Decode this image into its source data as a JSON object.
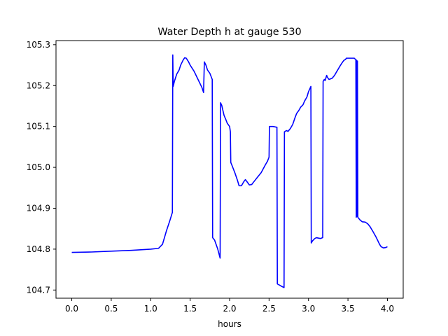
{
  "chart_data": {
    "type": "line",
    "title": "Water Depth h at gauge 530",
    "xlabel": "hours",
    "ylabel": "",
    "xlim": [
      -0.2,
      4.2
    ],
    "ylim": [
      104.68,
      105.31
    ],
    "xticks": [
      0.0,
      0.5,
      1.0,
      1.5,
      2.0,
      2.5,
      3.0,
      3.5,
      4.0
    ],
    "xtick_labels": [
      "0.0",
      "0.5",
      "1.0",
      "1.5",
      "2.0",
      "2.5",
      "3.0",
      "3.5",
      "4.0"
    ],
    "yticks": [
      104.7,
      104.8,
      104.9,
      105.0,
      105.1,
      105.2,
      105.3
    ],
    "ytick_labels": [
      "104.7",
      "104.8",
      "104.9",
      "105.0",
      "105.1",
      "105.2",
      "105.3"
    ],
    "grid": false,
    "legend": "none",
    "series": [
      {
        "color": "#0000ff",
        "points": [
          [
            0.0,
            104.792
          ],
          [
            0.25,
            104.793
          ],
          [
            0.5,
            104.795
          ],
          [
            0.75,
            104.797
          ],
          [
            1.0,
            104.8
          ],
          [
            1.1,
            104.802
          ],
          [
            1.15,
            104.812
          ],
          [
            1.2,
            104.845
          ],
          [
            1.24,
            104.868
          ],
          [
            1.275,
            104.89
          ],
          [
            1.28,
            105.275
          ],
          [
            1.285,
            105.198
          ],
          [
            1.3,
            105.21
          ],
          [
            1.33,
            105.228
          ],
          [
            1.36,
            105.238
          ],
          [
            1.38,
            105.25
          ],
          [
            1.41,
            105.262
          ],
          [
            1.43,
            105.268
          ],
          [
            1.45,
            105.267
          ],
          [
            1.48,
            105.258
          ],
          [
            1.5,
            105.25
          ],
          [
            1.55,
            105.235
          ],
          [
            1.6,
            105.215
          ],
          [
            1.65,
            105.195
          ],
          [
            1.67,
            105.183
          ],
          [
            1.68,
            105.258
          ],
          [
            1.7,
            105.25
          ],
          [
            1.72,
            105.238
          ],
          [
            1.75,
            105.23
          ],
          [
            1.78,
            105.215
          ],
          [
            1.785,
            104.828
          ],
          [
            1.81,
            104.822
          ],
          [
            1.85,
            104.8
          ],
          [
            1.88,
            104.778
          ],
          [
            1.885,
            105.158
          ],
          [
            1.9,
            105.152
          ],
          [
            1.92,
            105.135
          ],
          [
            1.93,
            105.127
          ],
          [
            1.95,
            105.118
          ],
          [
            1.97,
            105.108
          ],
          [
            2.0,
            105.1
          ],
          [
            2.01,
            105.087
          ],
          [
            2.015,
            105.012
          ],
          [
            2.03,
            105.005
          ],
          [
            2.05,
            104.995
          ],
          [
            2.07,
            104.985
          ],
          [
            2.1,
            104.968
          ],
          [
            2.12,
            104.955
          ],
          [
            2.15,
            104.955
          ],
          [
            2.18,
            104.965
          ],
          [
            2.2,
            104.97
          ],
          [
            2.22,
            104.965
          ],
          [
            2.25,
            104.957
          ],
          [
            2.28,
            104.958
          ],
          [
            2.3,
            104.963
          ],
          [
            2.35,
            104.975
          ],
          [
            2.4,
            104.987
          ],
          [
            2.45,
            105.005
          ],
          [
            2.48,
            105.015
          ],
          [
            2.5,
            105.025
          ],
          [
            2.505,
            105.1
          ],
          [
            2.55,
            105.1
          ],
          [
            2.6,
            105.098
          ],
          [
            2.605,
            104.715
          ],
          [
            2.65,
            104.71
          ],
          [
            2.69,
            104.706
          ],
          [
            2.695,
            105.087
          ],
          [
            2.72,
            105.09
          ],
          [
            2.74,
            105.088
          ],
          [
            2.77,
            105.095
          ],
          [
            2.8,
            105.105
          ],
          [
            2.83,
            105.122
          ],
          [
            2.85,
            105.132
          ],
          [
            2.88,
            105.14
          ],
          [
            2.9,
            105.147
          ],
          [
            2.93,
            105.153
          ],
          [
            2.95,
            105.162
          ],
          [
            2.98,
            105.172
          ],
          [
            3.0,
            105.185
          ],
          [
            3.03,
            105.198
          ],
          [
            3.035,
            104.815
          ],
          [
            3.05,
            104.82
          ],
          [
            3.08,
            104.826
          ],
          [
            3.1,
            104.828
          ],
          [
            3.15,
            104.826
          ],
          [
            3.18,
            104.828
          ],
          [
            3.185,
            105.21
          ],
          [
            3.2,
            105.215
          ],
          [
            3.21,
            105.212
          ],
          [
            3.23,
            105.225
          ],
          [
            3.24,
            105.22
          ],
          [
            3.26,
            105.215
          ],
          [
            3.3,
            105.218
          ],
          [
            3.33,
            105.225
          ],
          [
            3.36,
            105.235
          ],
          [
            3.4,
            105.248
          ],
          [
            3.43,
            105.257
          ],
          [
            3.45,
            105.262
          ],
          [
            3.47,
            105.264
          ],
          [
            3.48,
            105.267
          ],
          [
            3.55,
            105.267
          ],
          [
            3.58,
            105.267
          ],
          [
            3.6,
            105.263
          ],
          [
            3.605,
            104.878
          ],
          [
            3.61,
            105.262
          ],
          [
            3.615,
            104.88
          ],
          [
            3.62,
            105.26
          ],
          [
            3.625,
            104.878
          ],
          [
            3.65,
            104.872
          ],
          [
            3.68,
            104.867
          ],
          [
            3.72,
            104.866
          ],
          [
            3.75,
            104.862
          ],
          [
            3.78,
            104.855
          ],
          [
            3.82,
            104.842
          ],
          [
            3.86,
            104.828
          ],
          [
            3.9,
            104.812
          ],
          [
            3.92,
            104.806
          ],
          [
            3.95,
            104.803
          ],
          [
            3.98,
            104.804
          ],
          [
            4.0,
            104.806
          ]
        ]
      }
    ]
  }
}
